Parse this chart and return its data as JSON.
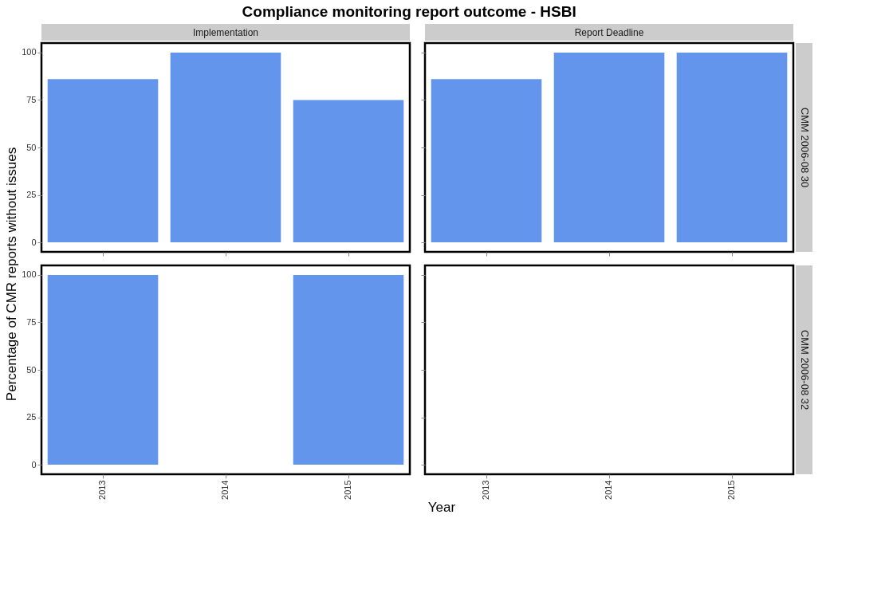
{
  "chart_data": [
    {
      "type": "bar",
      "title": "Compliance monitoring report outcome - HSBI",
      "subtitle": "Implementation",
      "ylabel": "Percentage of CMR reports without issues",
      "categories": [
        "2013",
        "2014",
        "2015"
      ],
      "values": [
        86,
        100,
        75
      ],
      "color": "#6495ed",
      "ylim": [
        -5,
        105
      ],
      "yticks": [
        0,
        25,
        50,
        75,
        100
      ],
      "tick_labels": "y"
    },
    {
      "type": "bar",
      "subtitle": "Report Deadline",
      "annotations": [
        "CMM 2006-08 30"
      ],
      "categories": [
        "2013",
        "2014",
        "2015"
      ],
      "values": [
        86,
        100,
        100
      ],
      "color": "#6495ed",
      "ylim": [
        -5,
        105
      ],
      "yticks": [
        0,
        25,
        50,
        75,
        100
      ],
      "tick_labels": false
    },
    {
      "type": "bar",
      "xlabel": "Year",
      "categories": [
        "2013",
        "2014",
        "2015"
      ],
      "values": [
        100,
        null,
        100
      ],
      "color": "#6495ed",
      "ylim": [
        -5,
        105
      ],
      "yticks": [
        0,
        25,
        50,
        75,
        100
      ]
    },
    {
      "type": "bar",
      "annotations": [
        "CMM 2006-08 32"
      ],
      "categories": [
        "2013",
        "2014",
        "2015"
      ],
      "values": [
        null,
        null,
        null
      ],
      "color": "#6495ed",
      "ylim": [
        -5,
        105
      ],
      "yticks": [
        0,
        25,
        50,
        75,
        100
      ],
      "tick_labels": "x"
    }
  ]
}
